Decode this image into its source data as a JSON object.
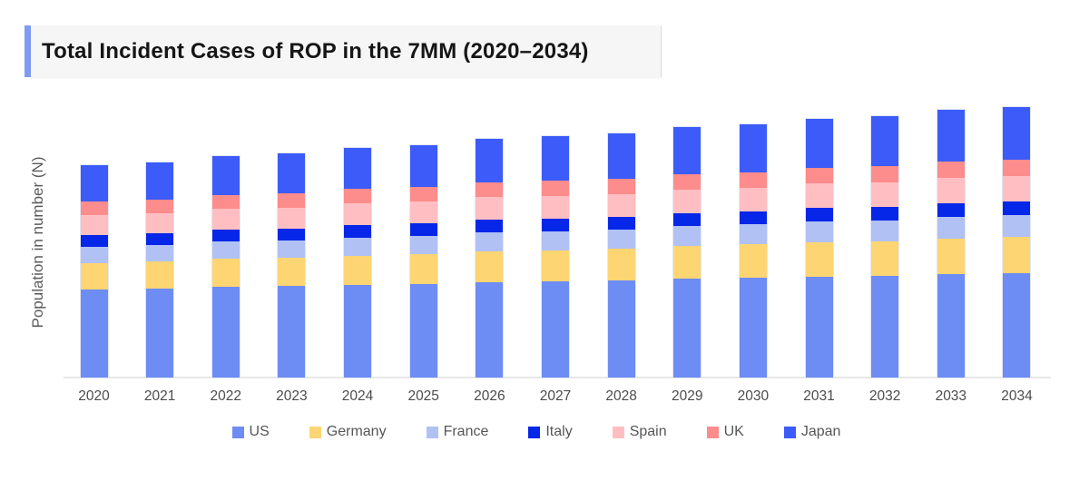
{
  "header": {
    "title": "Total Incident Cases of ROP in the 7MM (2020–2034)",
    "accent_color": "#7f9cf3",
    "band_color": "#f6f6f7"
  },
  "chart_data": {
    "type": "bar",
    "stacked": true,
    "title": "Total Incident Cases of ROP in the 7MM (2020–2034)",
    "ylabel": "Population in number (N)",
    "xlabel": "",
    "y_axis_tick_labels": "none shown (values are relative heights measured in px)",
    "grid": false,
    "legend_position": "bottom",
    "categories": [
      "2020",
      "2021",
      "2022",
      "2023",
      "2024",
      "2025",
      "2026",
      "2027",
      "2028",
      "2029",
      "2030",
      "2031",
      "2032",
      "2033",
      "2034"
    ],
    "series": [
      {
        "name": "US",
        "color": "#6D8CF4",
        "values": [
          97,
          98,
          100,
          101,
          102,
          103,
          105,
          106,
          107,
          109,
          110,
          111,
          112,
          114,
          115
        ]
      },
      {
        "name": "Germany",
        "color": "#FDD572",
        "values": [
          29,
          30,
          31,
          31,
          32,
          33,
          34,
          34,
          35,
          36,
          37,
          38,
          38,
          39,
          40
        ]
      },
      {
        "name": "France",
        "color": "#B1C1F4",
        "values": [
          18,
          18,
          19,
          19,
          20,
          20,
          21,
          21,
          21,
          22,
          22,
          23,
          23,
          24,
          24
        ]
      },
      {
        "name": "Italy",
        "color": "#0626E8",
        "values": [
          13,
          13,
          13,
          13,
          14,
          14,
          14,
          14,
          14,
          14,
          14,
          15,
          15,
          15,
          15
        ]
      },
      {
        "name": "Spain",
        "color": "#FFBFC2",
        "values": [
          22,
          22,
          23,
          23,
          24,
          24,
          25,
          25,
          25,
          26,
          26,
          27,
          27,
          28,
          28
        ]
      },
      {
        "name": "UK",
        "color": "#FD8C8C",
        "values": [
          15,
          15,
          15,
          16,
          16,
          16,
          16,
          17,
          17,
          17,
          17,
          17,
          18,
          18,
          18
        ]
      },
      {
        "name": "Japan",
        "color": "#3C5BF8",
        "values": [
          40,
          41,
          43,
          44,
          45,
          46,
          48,
          49,
          50,
          52,
          53,
          54,
          55,
          57,
          58
        ]
      }
    ]
  }
}
